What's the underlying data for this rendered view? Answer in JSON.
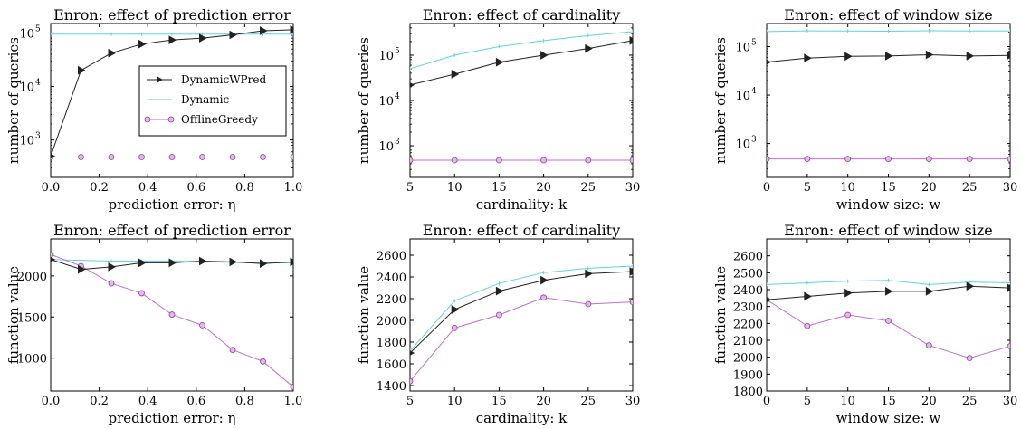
{
  "colors": {
    "DynamicWPred": "#222222",
    "Dynamic": "#5fd3e0",
    "OfflineGreedy": "#c26bd0",
    "OfflineGreedyFill": "#e9b5ef"
  },
  "legend": {
    "placement": "center-right",
    "entries": [
      {
        "name": "DynamicWPred",
        "marker": "triangle-right"
      },
      {
        "name": "Dynamic",
        "marker": "none"
      },
      {
        "name": "OfflineGreedy",
        "marker": "circle"
      }
    ]
  },
  "chart_data": [
    {
      "type": "line",
      "title": "Enron: effect of prediction error",
      "xlabel": "prediction error: η",
      "ylabel": "number of queries",
      "xlim": [
        0,
        1
      ],
      "ylim": [
        200,
        150000
      ],
      "yscale": "log",
      "xticks": [
        "0.0",
        "0.2",
        "0.4",
        "0.6",
        "0.8",
        "1.0"
      ],
      "xtick_values": [
        0,
        0.2,
        0.4,
        0.6,
        0.8,
        1.0
      ],
      "yticks": [
        {
          "value": 1000,
          "base": "10",
          "exp": "3"
        },
        {
          "value": 10000,
          "base": "10",
          "exp": "4"
        },
        {
          "value": 100000,
          "base": "10",
          "exp": "5"
        }
      ],
      "show_legend": true,
      "x": [
        0,
        0.125,
        0.25,
        0.375,
        0.5,
        0.625,
        0.75,
        0.875,
        1.0
      ],
      "series": [
        {
          "name": "DynamicWPred",
          "values": [
            500,
            20000,
            42000,
            62000,
            74000,
            80000,
            92000,
            110000,
            115000
          ]
        },
        {
          "name": "Dynamic",
          "values": [
            95000,
            95000,
            95000,
            95000,
            95000,
            95000,
            95000,
            95000,
            95000
          ]
        },
        {
          "name": "OfflineGreedy",
          "values": [
            480,
            480,
            480,
            480,
            480,
            480,
            480,
            480,
            480
          ]
        }
      ]
    },
    {
      "type": "line",
      "title": "Enron: effect of cardinality",
      "xlabel": "cardinality: k",
      "ylabel": "number of queries",
      "xlim": [
        5,
        30
      ],
      "ylim": [
        200,
        500000
      ],
      "yscale": "log",
      "xticks": [
        "5",
        "10",
        "15",
        "20",
        "25",
        "30"
      ],
      "xtick_values": [
        5,
        10,
        15,
        20,
        25,
        30
      ],
      "yticks": [
        {
          "value": 1000,
          "base": "10",
          "exp": "3"
        },
        {
          "value": 10000,
          "base": "10",
          "exp": "4"
        },
        {
          "value": 100000,
          "base": "10",
          "exp": "5"
        }
      ],
      "show_legend": false,
      "x": [
        5,
        10,
        15,
        20,
        25,
        30
      ],
      "series": [
        {
          "name": "DynamicWPred",
          "values": [
            22000,
            38000,
            70000,
            100000,
            140000,
            210000
          ]
        },
        {
          "name": "Dynamic",
          "values": [
            50000,
            100000,
            155000,
            210000,
            270000,
            330000
          ]
        },
        {
          "name": "OfflineGreedy",
          "values": [
            480,
            480,
            480,
            480,
            480,
            480
          ]
        }
      ]
    },
    {
      "type": "line",
      "title": "Enron: effect of window size",
      "xlabel": "window size: w",
      "ylabel": "number of queries",
      "xlim": [
        0,
        30
      ],
      "ylim": [
        200,
        300000
      ],
      "yscale": "log",
      "xticks": [
        "0",
        "5",
        "10",
        "15",
        "20",
        "25",
        "30"
      ],
      "xtick_values": [
        0,
        5,
        10,
        15,
        20,
        25,
        30
      ],
      "yticks": [
        {
          "value": 1000,
          "base": "10",
          "exp": "3"
        },
        {
          "value": 10000,
          "base": "10",
          "exp": "4"
        },
        {
          "value": 100000,
          "base": "10",
          "exp": "5"
        }
      ],
      "show_legend": false,
      "x": [
        0,
        5,
        10,
        15,
        20,
        25,
        30
      ],
      "series": [
        {
          "name": "DynamicWPred",
          "values": [
            48000,
            58000,
            63000,
            64000,
            68000,
            64000,
            66000
          ]
        },
        {
          "name": "Dynamic",
          "values": [
            205000,
            212000,
            210000,
            208000,
            213000,
            210000,
            212000
          ]
        },
        {
          "name": "OfflineGreedy",
          "values": [
            480,
            480,
            480,
            480,
            480,
            480,
            480
          ]
        }
      ]
    },
    {
      "type": "line",
      "title": "Enron: effect of prediction error",
      "xlabel": "prediction error: η",
      "ylabel": "function value",
      "xlim": [
        0,
        1
      ],
      "ylim": [
        600,
        2450
      ],
      "yscale": "linear",
      "xticks": [
        "0.0",
        "0.2",
        "0.4",
        "0.6",
        "0.8",
        "1.0"
      ],
      "xtick_values": [
        0,
        0.2,
        0.4,
        0.6,
        0.8,
        1.0
      ],
      "yticks": [
        {
          "value": 1000,
          "label": "1000"
        },
        {
          "value": 1500,
          "label": "1500"
        },
        {
          "value": 2000,
          "label": "2000"
        }
      ],
      "show_legend": false,
      "x": [
        0,
        0.125,
        0.25,
        0.375,
        0.5,
        0.625,
        0.75,
        0.875,
        1.0
      ],
      "series": [
        {
          "name": "DynamicWPred",
          "values": [
            2200,
            2080,
            2110,
            2160,
            2160,
            2180,
            2170,
            2150,
            2170
          ]
        },
        {
          "name": "Dynamic",
          "values": [
            2200,
            2190,
            2180,
            2180,
            2180,
            2175,
            2165,
            2160,
            2160
          ]
        },
        {
          "name": "OfflineGreedy",
          "values": [
            2260,
            2120,
            1910,
            1790,
            1530,
            1400,
            1100,
            960,
            650
          ]
        }
      ]
    },
    {
      "type": "line",
      "title": "Enron: effect of cardinality",
      "xlabel": "cardinality: k",
      "ylabel": "function value",
      "xlim": [
        5,
        30
      ],
      "ylim": [
        1350,
        2750
      ],
      "yscale": "linear",
      "xticks": [
        "5",
        "10",
        "15",
        "20",
        "25",
        "30"
      ],
      "xtick_values": [
        5,
        10,
        15,
        20,
        25,
        30
      ],
      "yticks": [
        {
          "value": 1400,
          "label": "1400"
        },
        {
          "value": 1600,
          "label": "1600"
        },
        {
          "value": 1800,
          "label": "1800"
        },
        {
          "value": 2000,
          "label": "2000"
        },
        {
          "value": 2200,
          "label": "2200"
        },
        {
          "value": 2400,
          "label": "2400"
        },
        {
          "value": 2600,
          "label": "2600"
        }
      ],
      "show_legend": false,
      "x": [
        5,
        10,
        15,
        20,
        25,
        30
      ],
      "series": [
        {
          "name": "DynamicWPred",
          "values": [
            1700,
            2100,
            2270,
            2370,
            2430,
            2450
          ]
        },
        {
          "name": "Dynamic",
          "values": [
            1720,
            2180,
            2340,
            2440,
            2480,
            2500
          ]
        },
        {
          "name": "OfflineGreedy",
          "values": [
            1440,
            1930,
            2050,
            2210,
            2150,
            2170
          ]
        }
      ]
    },
    {
      "type": "line",
      "title": "Enron: effect of window size",
      "xlabel": "window size: w",
      "ylabel": "function value",
      "xlim": [
        0,
        30
      ],
      "ylim": [
        1800,
        2700
      ],
      "yscale": "linear",
      "xticks": [
        "0",
        "5",
        "10",
        "15",
        "20",
        "25",
        "30"
      ],
      "xtick_values": [
        0,
        5,
        10,
        15,
        20,
        25,
        30
      ],
      "yticks": [
        {
          "value": 1800,
          "label": "1800"
        },
        {
          "value": 1900,
          "label": "1900"
        },
        {
          "value": 2000,
          "label": "2000"
        },
        {
          "value": 2100,
          "label": "2100"
        },
        {
          "value": 2200,
          "label": "2200"
        },
        {
          "value": 2300,
          "label": "2300"
        },
        {
          "value": 2400,
          "label": "2400"
        },
        {
          "value": 2500,
          "label": "2500"
        },
        {
          "value": 2600,
          "label": "2600"
        }
      ],
      "show_legend": false,
      "x": [
        0,
        5,
        10,
        15,
        20,
        25,
        30
      ],
      "series": [
        {
          "name": "DynamicWPred",
          "values": [
            2340,
            2360,
            2380,
            2390,
            2390,
            2420,
            2410
          ]
        },
        {
          "name": "Dynamic",
          "values": [
            2430,
            2440,
            2450,
            2455,
            2430,
            2445,
            2440
          ]
        },
        {
          "name": "OfflineGreedy",
          "values": [
            2340,
            2185,
            2250,
            2215,
            2070,
            1995,
            2065
          ]
        }
      ]
    }
  ]
}
